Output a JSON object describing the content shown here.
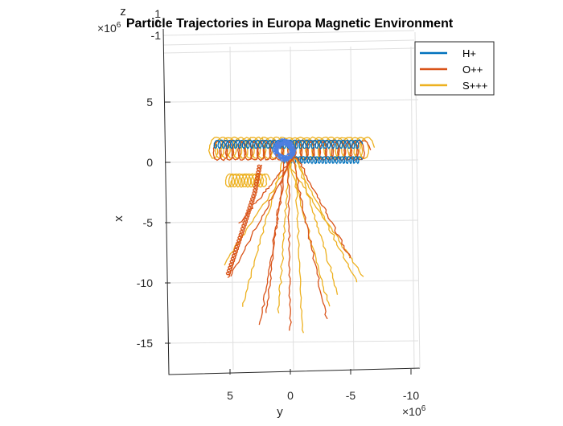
{
  "chart_data": {
    "type": "line",
    "title": "Particle Trajectories in Europa Magnetic Environment",
    "xlabel": "y",
    "ylabel": "x",
    "zlabel": "z",
    "x_exponent_label": "×10",
    "x_exponent": "6",
    "z_exponent_label": "×10",
    "z_exponent": "6",
    "y_ticks": [
      "5",
      "0",
      "-5",
      "-10"
    ],
    "x_ticks": [
      "5",
      "0",
      "-5",
      "-10",
      "-15"
    ],
    "z_ticks": [
      "-1",
      "0",
      "1"
    ],
    "xlim": [
      -17.5,
      6.5
    ],
    "ylim": [
      -10.5,
      9
    ],
    "legend": {
      "location": "northeast"
    },
    "grid": true,
    "series": [
      {
        "name": "H+",
        "color": "#0072BD",
        "note": "tight helical ring along x≈0.5 from y≈6 to y≈-6"
      },
      {
        "name": "O++",
        "color": "#D95319",
        "note": "large gyration loops around origin plus long tails toward negative x"
      },
      {
        "name": "S+++",
        "color": "#EDB120",
        "note": "gyration loops plus fan of long tails toward negative x"
      }
    ],
    "tails": {
      "O++": [
        [
          5.0,
          -9.5
        ],
        [
          4.2,
          -5.0
        ],
        [
          2.5,
          -13.5
        ],
        [
          0.0,
          -14.0
        ],
        [
          -3.0,
          -13.0
        ],
        [
          -5.0,
          -8.0
        ],
        [
          2.0,
          -12.5
        ]
      ],
      "S+++": [
        [
          4.0,
          -12.0
        ],
        [
          1.0,
          -12.5
        ],
        [
          -1.0,
          -14.2
        ],
        [
          -3.2,
          -12.0
        ],
        [
          -5.5,
          -10.0
        ],
        [
          -4.0,
          -11.0
        ],
        [
          5.5,
          -8.5
        ],
        [
          -6.0,
          -9.5
        ]
      ]
    }
  }
}
